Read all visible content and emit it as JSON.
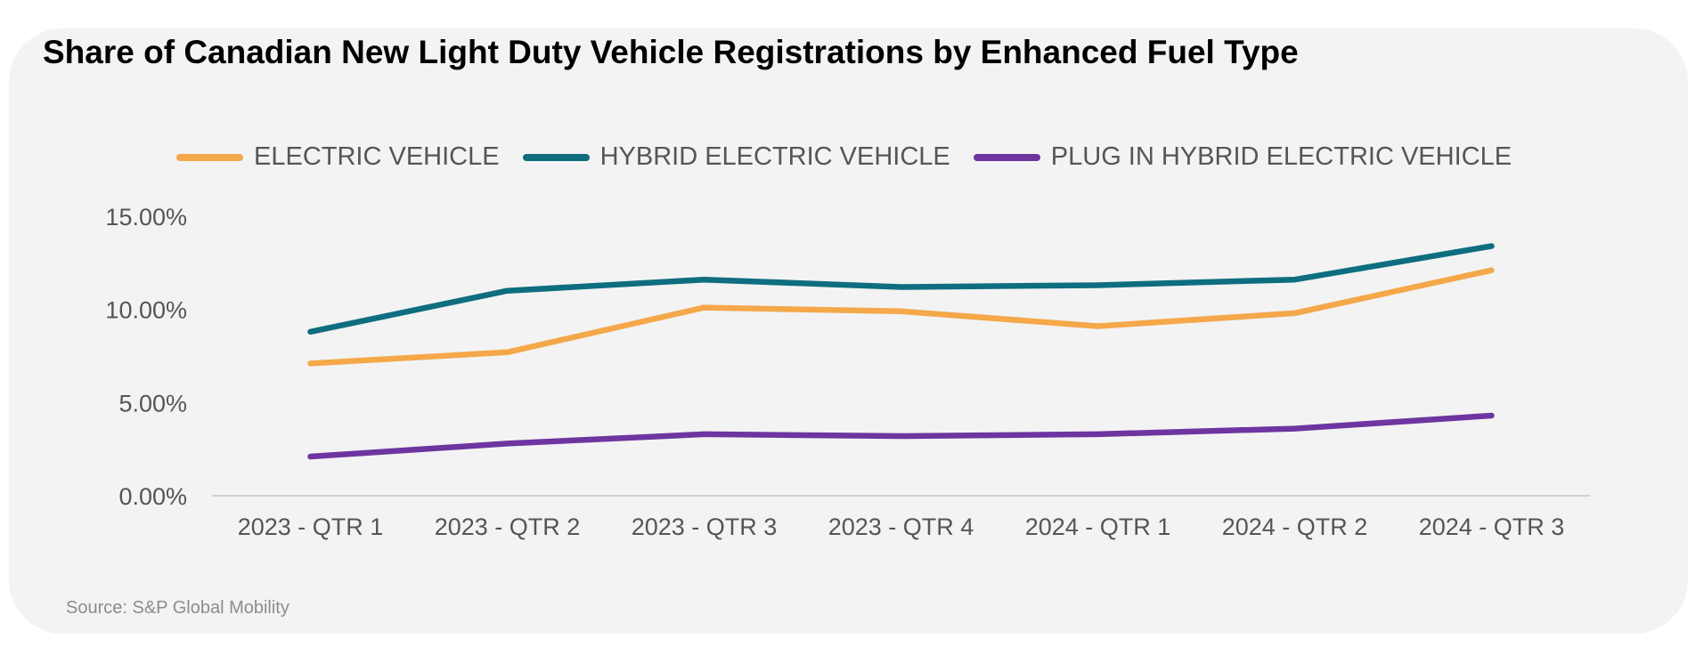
{
  "chart_data": {
    "type": "line",
    "title": "Share of Canadian New Light Duty Vehicle Registrations by Enhanced Fuel Type",
    "categories": [
      "2023 - QTR 1",
      "2023 - QTR 2",
      "2023 - QTR 3",
      "2023 - QTR 4",
      "2024 - QTR 1",
      "2024 - QTR 2",
      "2024 - QTR 3"
    ],
    "series": [
      {
        "name": "ELECTRIC VEHICLE",
        "color": "#F4A84A",
        "values": [
          7.1,
          7.7,
          10.1,
          9.9,
          9.1,
          9.8,
          12.1
        ]
      },
      {
        "name": "HYBRID ELECTRIC VEHICLE",
        "color": "#0E6E80",
        "values": [
          8.8,
          11.0,
          11.6,
          11.2,
          11.3,
          11.6,
          13.4
        ]
      },
      {
        "name": "PLUG IN HYBRID ELECTRIC VEHICLE",
        "color": "#6E35A0",
        "values": [
          2.1,
          2.8,
          3.3,
          3.2,
          3.3,
          3.6,
          4.3
        ]
      }
    ],
    "yticks": [
      "0.00%",
      "5.00%",
      "10.00%",
      "15.00%"
    ],
    "ytick_values": [
      0,
      5,
      10,
      15
    ],
    "ylim": [
      0,
      15
    ],
    "xlabel": "",
    "ylabel": "",
    "legend_position": "top",
    "grid": false
  },
  "source": "Source: S&P Global Mobility"
}
